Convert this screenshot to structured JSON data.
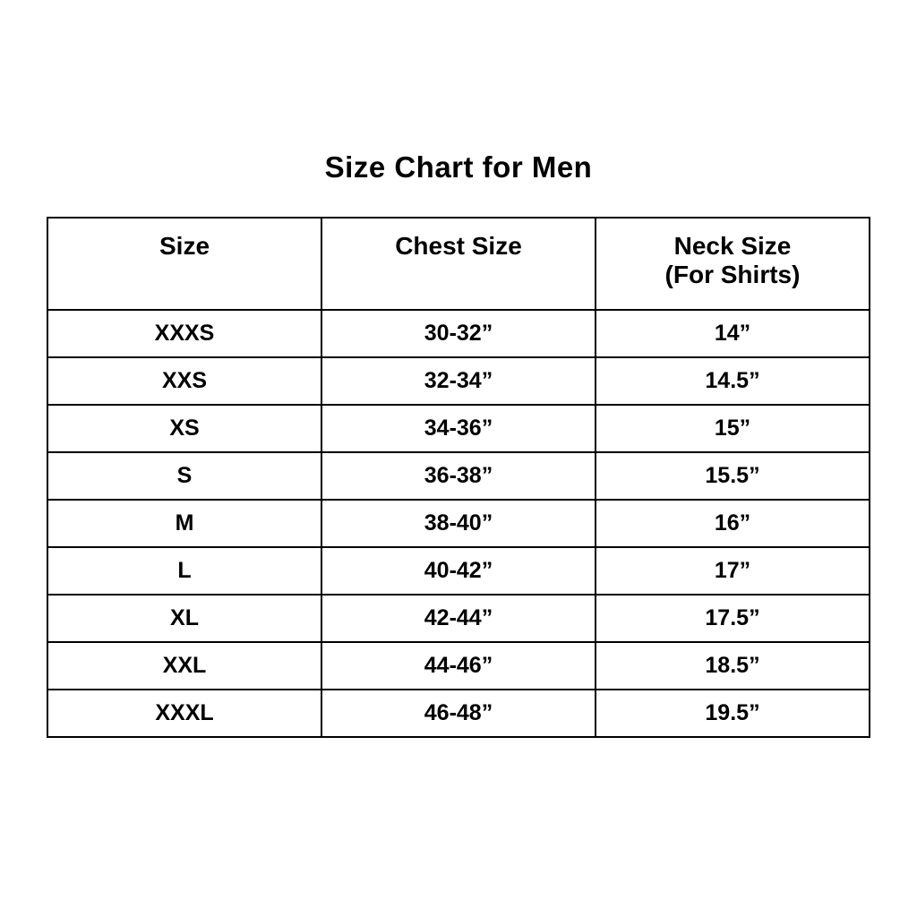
{
  "page": {
    "background_color": "#ffffff",
    "text_color": "#000000",
    "border_color": "#000000"
  },
  "chart_data": {
    "type": "table",
    "title": "Size Chart for Men",
    "columns": [
      {
        "label": "Size",
        "sublabel": ""
      },
      {
        "label": "Chest Size",
        "sublabel": ""
      },
      {
        "label": "Neck Size",
        "sublabel": "(For Shirts)"
      }
    ],
    "rows": [
      [
        "XXXS",
        "30-32”",
        "14”"
      ],
      [
        "XXS",
        "32-34”",
        "14.5”"
      ],
      [
        "XS",
        "34-36”",
        "15”"
      ],
      [
        "S",
        "36-38”",
        "15.5”"
      ],
      [
        "M",
        "38-40”",
        "16”"
      ],
      [
        "L",
        "40-42”",
        "17”"
      ],
      [
        "XL",
        "42-44”",
        "17.5”"
      ],
      [
        "XXL",
        "44-46”",
        "18.5”"
      ],
      [
        "XXXL",
        "46-48”",
        "19.5”"
      ]
    ],
    "layout_hints": {
      "grid": true,
      "header_rows": 1,
      "text_align": "center",
      "font_weight": "bold"
    }
  }
}
